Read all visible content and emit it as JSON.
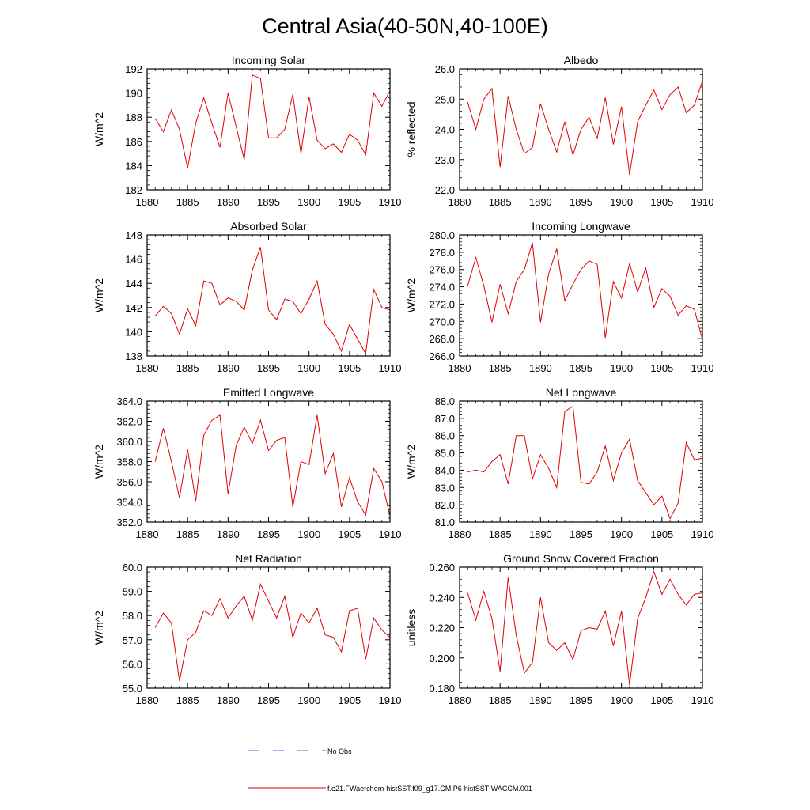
{
  "title": "Central Asia(40-50N,40-100E)",
  "legend": {
    "entries": [
      {
        "label": "No Obs",
        "style": "dashed",
        "color": "#5a5ae6"
      },
      {
        "label": "f.e21.FWaerchem-histSST.f09_g17.CMIP6-histSST-WACCM.001",
        "style": "solid",
        "color": "#e00000"
      }
    ]
  },
  "colors": {
    "series": "#e00000",
    "axis": "#000000"
  },
  "chart_data": [
    {
      "type": "line",
      "title": "Incoming Solar",
      "xlabel": "",
      "ylabel": "W/m^2",
      "xlim": [
        1880,
        1910
      ],
      "ylim": [
        182,
        192
      ],
      "xticks": [
        1880,
        1885,
        1890,
        1895,
        1900,
        1905,
        1910
      ],
      "xtick_labels": [
        "1880",
        "1885",
        "1890",
        "1895",
        "1900",
        "1905",
        "1910"
      ],
      "yticks": [
        182,
        184,
        186,
        188,
        190,
        192
      ],
      "ytick_labels": [
        "182",
        "184",
        "186",
        "188",
        "190",
        "192"
      ],
      "x": [
        1881,
        1882,
        1883,
        1884,
        1885,
        1886,
        1887,
        1888,
        1889,
        1890,
        1891,
        1892,
        1893,
        1894,
        1895,
        1896,
        1897,
        1898,
        1899,
        1900,
        1901,
        1902,
        1903,
        1904,
        1905,
        1906,
        1907,
        1908,
        1909,
        1910
      ],
      "series": [
        {
          "values": [
            187.9,
            186.8,
            188.6,
            187.0,
            183.8,
            187.5,
            189.6,
            187.5,
            185.5,
            190.0,
            187.2,
            184.5,
            191.5,
            191.2,
            186.3,
            186.3,
            187.0,
            189.9,
            185.0,
            189.7,
            186.1,
            185.4,
            185.8,
            185.1,
            186.6,
            186.1,
            184.9,
            190.0,
            188.9,
            190.2
          ]
        }
      ]
    },
    {
      "type": "line",
      "title": "Albedo",
      "xlabel": "",
      "ylabel": "% reflected",
      "xlim": [
        1880,
        1910
      ],
      "ylim": [
        22.0,
        26.0
      ],
      "xticks": [
        1880,
        1885,
        1890,
        1895,
        1900,
        1905,
        1910
      ],
      "xtick_labels": [
        "1880",
        "1885",
        "1890",
        "1895",
        "1900",
        "1905",
        "1910"
      ],
      "yticks": [
        22,
        23,
        24,
        25,
        26
      ],
      "ytick_labels": [
        "22.0",
        "23.0",
        "24.0",
        "25.0",
        "26.0"
      ],
      "x": [
        1881,
        1882,
        1883,
        1884,
        1885,
        1886,
        1887,
        1888,
        1889,
        1890,
        1891,
        1892,
        1893,
        1894,
        1895,
        1896,
        1897,
        1898,
        1899,
        1900,
        1901,
        1902,
        1903,
        1904,
        1905,
        1906,
        1907,
        1908,
        1909,
        1910
      ],
      "series": [
        {
          "values": [
            24.9,
            24.0,
            25.0,
            25.35,
            22.75,
            25.1,
            24.0,
            23.2,
            23.4,
            24.85,
            24.0,
            23.25,
            24.25,
            23.15,
            24.0,
            24.4,
            23.7,
            25.05,
            23.5,
            24.75,
            22.5,
            24.25,
            24.8,
            25.3,
            24.65,
            25.15,
            25.4,
            24.55,
            24.8,
            25.6
          ]
        }
      ]
    },
    {
      "type": "line",
      "title": "Absorbed Solar",
      "xlabel": "",
      "ylabel": "W/m^2",
      "xlim": [
        1880,
        1910
      ],
      "ylim": [
        138,
        148
      ],
      "xticks": [
        1880,
        1885,
        1890,
        1895,
        1900,
        1905,
        1910
      ],
      "xtick_labels": [
        "1880",
        "1885",
        "1890",
        "1895",
        "1900",
        "1905",
        "1910"
      ],
      "yticks": [
        138,
        140,
        142,
        144,
        146,
        148
      ],
      "ytick_labels": [
        "138",
        "140",
        "142",
        "144",
        "146",
        "148"
      ],
      "x": [
        1881,
        1882,
        1883,
        1884,
        1885,
        1886,
        1887,
        1888,
        1889,
        1890,
        1891,
        1892,
        1893,
        1894,
        1895,
        1896,
        1897,
        1898,
        1899,
        1900,
        1901,
        1902,
        1903,
        1904,
        1905,
        1906,
        1907,
        1908,
        1909,
        1910
      ],
      "series": [
        {
          "values": [
            141.3,
            142.1,
            141.5,
            139.8,
            141.9,
            140.5,
            144.2,
            144.0,
            142.2,
            142.8,
            142.5,
            141.8,
            145.1,
            147.0,
            141.8,
            141.0,
            142.7,
            142.5,
            141.5,
            142.7,
            144.2,
            140.6,
            139.8,
            138.4,
            140.6,
            139.4,
            138.2,
            143.5,
            142.0,
            141.8
          ]
        }
      ]
    },
    {
      "type": "line",
      "title": "Incoming Longwave",
      "xlabel": "",
      "ylabel": "W/m^2",
      "xlim": [
        1880,
        1910
      ],
      "ylim": [
        266.0,
        280.0
      ],
      "xticks": [
        1880,
        1885,
        1890,
        1895,
        1900,
        1905,
        1910
      ],
      "xtick_labels": [
        "1880",
        "1885",
        "1890",
        "1895",
        "1900",
        "1905",
        "1910"
      ],
      "yticks": [
        266,
        268,
        270,
        272,
        274,
        276,
        278,
        280
      ],
      "ytick_labels": [
        "266.0",
        "268.0",
        "270.0",
        "272.0",
        "274.0",
        "276.0",
        "278.0",
        "280.0"
      ],
      "x": [
        1881,
        1882,
        1883,
        1884,
        1885,
        1886,
        1887,
        1888,
        1889,
        1890,
        1891,
        1892,
        1893,
        1894,
        1895,
        1896,
        1897,
        1898,
        1899,
        1900,
        1901,
        1902,
        1903,
        1904,
        1905,
        1906,
        1907,
        1908,
        1909,
        1910
      ],
      "series": [
        {
          "values": [
            274.1,
            277.4,
            274.1,
            269.9,
            274.3,
            270.9,
            274.6,
            276.0,
            279.1,
            269.9,
            275.5,
            278.4,
            272.4,
            274.3,
            276.0,
            277.0,
            276.6,
            268.1,
            274.6,
            272.7,
            276.7,
            273.4,
            276.2,
            271.6,
            273.8,
            272.9,
            270.7,
            271.8,
            271.4,
            267.9
          ]
        }
      ]
    },
    {
      "type": "line",
      "title": "Emitted Longwave",
      "xlabel": "",
      "ylabel": "W/m^2",
      "xlim": [
        1880,
        1910
      ],
      "ylim": [
        352.0,
        364.0
      ],
      "xticks": [
        1880,
        1885,
        1890,
        1895,
        1900,
        1905,
        1910
      ],
      "xtick_labels": [
        "1880",
        "1885",
        "1890",
        "1895",
        "1900",
        "1905",
        "1910"
      ],
      "yticks": [
        352,
        354,
        356,
        358,
        360,
        362,
        364
      ],
      "ytick_labels": [
        "352.0",
        "354.0",
        "356.0",
        "358.0",
        "360.0",
        "362.0",
        "364.0"
      ],
      "x": [
        1881,
        1882,
        1883,
        1884,
        1885,
        1886,
        1887,
        1888,
        1889,
        1890,
        1891,
        1892,
        1893,
        1894,
        1895,
        1896,
        1897,
        1898,
        1899,
        1900,
        1901,
        1902,
        1903,
        1904,
        1905,
        1906,
        1907,
        1908,
        1909,
        1910
      ],
      "series": [
        {
          "values": [
            358.0,
            361.3,
            358.0,
            354.4,
            359.2,
            354.1,
            360.6,
            362.1,
            362.6,
            354.8,
            359.6,
            361.4,
            359.8,
            362.1,
            359.1,
            360.1,
            360.4,
            353.5,
            358.0,
            357.7,
            362.6,
            356.8,
            358.8,
            353.5,
            356.4,
            354.0,
            352.7,
            357.3,
            356.0,
            352.6
          ]
        }
      ]
    },
    {
      "type": "line",
      "title": "Net Longwave",
      "xlabel": "",
      "ylabel": "W/m^2",
      "xlim": [
        1880,
        1910
      ],
      "ylim": [
        81.0,
        88.0
      ],
      "xticks": [
        1880,
        1885,
        1890,
        1895,
        1900,
        1905,
        1910
      ],
      "xtick_labels": [
        "1880",
        "1885",
        "1890",
        "1895",
        "1900",
        "1905",
        "1910"
      ],
      "yticks": [
        81,
        82,
        83,
        84,
        85,
        86,
        87,
        88
      ],
      "ytick_labels": [
        "81.0",
        "82.0",
        "83.0",
        "84.0",
        "85.0",
        "86.0",
        "87.0",
        "88.0"
      ],
      "x": [
        1881,
        1882,
        1883,
        1884,
        1885,
        1886,
        1887,
        1888,
        1889,
        1890,
        1891,
        1892,
        1893,
        1894,
        1895,
        1896,
        1897,
        1898,
        1899,
        1900,
        1901,
        1902,
        1903,
        1904,
        1905,
        1906,
        1907,
        1908,
        1909,
        1910
      ],
      "series": [
        {
          "values": [
            83.9,
            84.0,
            83.9,
            84.5,
            84.9,
            83.2,
            86.0,
            86.0,
            83.5,
            84.9,
            84.1,
            83.0,
            87.4,
            87.7,
            83.3,
            83.2,
            83.9,
            85.4,
            83.4,
            85.0,
            85.8,
            83.4,
            82.7,
            82.0,
            82.5,
            81.2,
            82.1,
            85.6,
            84.6,
            84.7
          ]
        }
      ]
    },
    {
      "type": "line",
      "title": "Net Radiation",
      "xlabel": "",
      "ylabel": "W/m^2",
      "xlim": [
        1880,
        1910
      ],
      "ylim": [
        55.0,
        60.0
      ],
      "xticks": [
        1880,
        1885,
        1890,
        1895,
        1900,
        1905,
        1910
      ],
      "xtick_labels": [
        "1880",
        "1885",
        "1890",
        "1895",
        "1900",
        "1905",
        "1910"
      ],
      "yticks": [
        55,
        56,
        57,
        58,
        59,
        60
      ],
      "ytick_labels": [
        "55.0",
        "56.0",
        "57.0",
        "58.0",
        "59.0",
        "60.0"
      ],
      "x": [
        1881,
        1882,
        1883,
        1884,
        1885,
        1886,
        1887,
        1888,
        1889,
        1890,
        1891,
        1892,
        1893,
        1894,
        1895,
        1896,
        1897,
        1898,
        1899,
        1900,
        1901,
        1902,
        1903,
        1904,
        1905,
        1906,
        1907,
        1908,
        1909,
        1910
      ],
      "series": [
        {
          "values": [
            57.5,
            58.1,
            57.7,
            55.3,
            57.0,
            57.3,
            58.2,
            58.0,
            58.7,
            57.9,
            58.4,
            58.8,
            57.8,
            59.3,
            58.6,
            57.9,
            58.8,
            57.1,
            58.1,
            57.7,
            58.3,
            57.2,
            57.1,
            56.5,
            58.2,
            58.3,
            56.2,
            57.9,
            57.4,
            57.1
          ]
        }
      ]
    },
    {
      "type": "line",
      "title": "Ground Snow Covered Fraction",
      "xlabel": "",
      "ylabel": "unitless",
      "xlim": [
        1880,
        1910
      ],
      "ylim": [
        0.18,
        0.26
      ],
      "xticks": [
        1880,
        1885,
        1890,
        1895,
        1900,
        1905,
        1910
      ],
      "xtick_labels": [
        "1880",
        "1885",
        "1890",
        "1895",
        "1900",
        "1905",
        "1910"
      ],
      "yticks": [
        0.18,
        0.2,
        0.22,
        0.24,
        0.26
      ],
      "ytick_labels": [
        "0.180",
        "0.200",
        "0.220",
        "0.240",
        "0.260"
      ],
      "x": [
        1881,
        1882,
        1883,
        1884,
        1885,
        1886,
        1887,
        1888,
        1889,
        1890,
        1891,
        1892,
        1893,
        1894,
        1895,
        1896,
        1897,
        1898,
        1899,
        1900,
        1901,
        1902,
        1903,
        1904,
        1905,
        1906,
        1907,
        1908,
        1909,
        1910
      ],
      "series": [
        {
          "values": [
            0.243,
            0.225,
            0.244,
            0.226,
            0.191,
            0.253,
            0.215,
            0.19,
            0.197,
            0.24,
            0.21,
            0.205,
            0.21,
            0.199,
            0.218,
            0.22,
            0.219,
            0.231,
            0.208,
            0.231,
            0.182,
            0.226,
            0.24,
            0.257,
            0.242,
            0.252,
            0.242,
            0.235,
            0.242,
            0.243
          ]
        }
      ]
    }
  ]
}
